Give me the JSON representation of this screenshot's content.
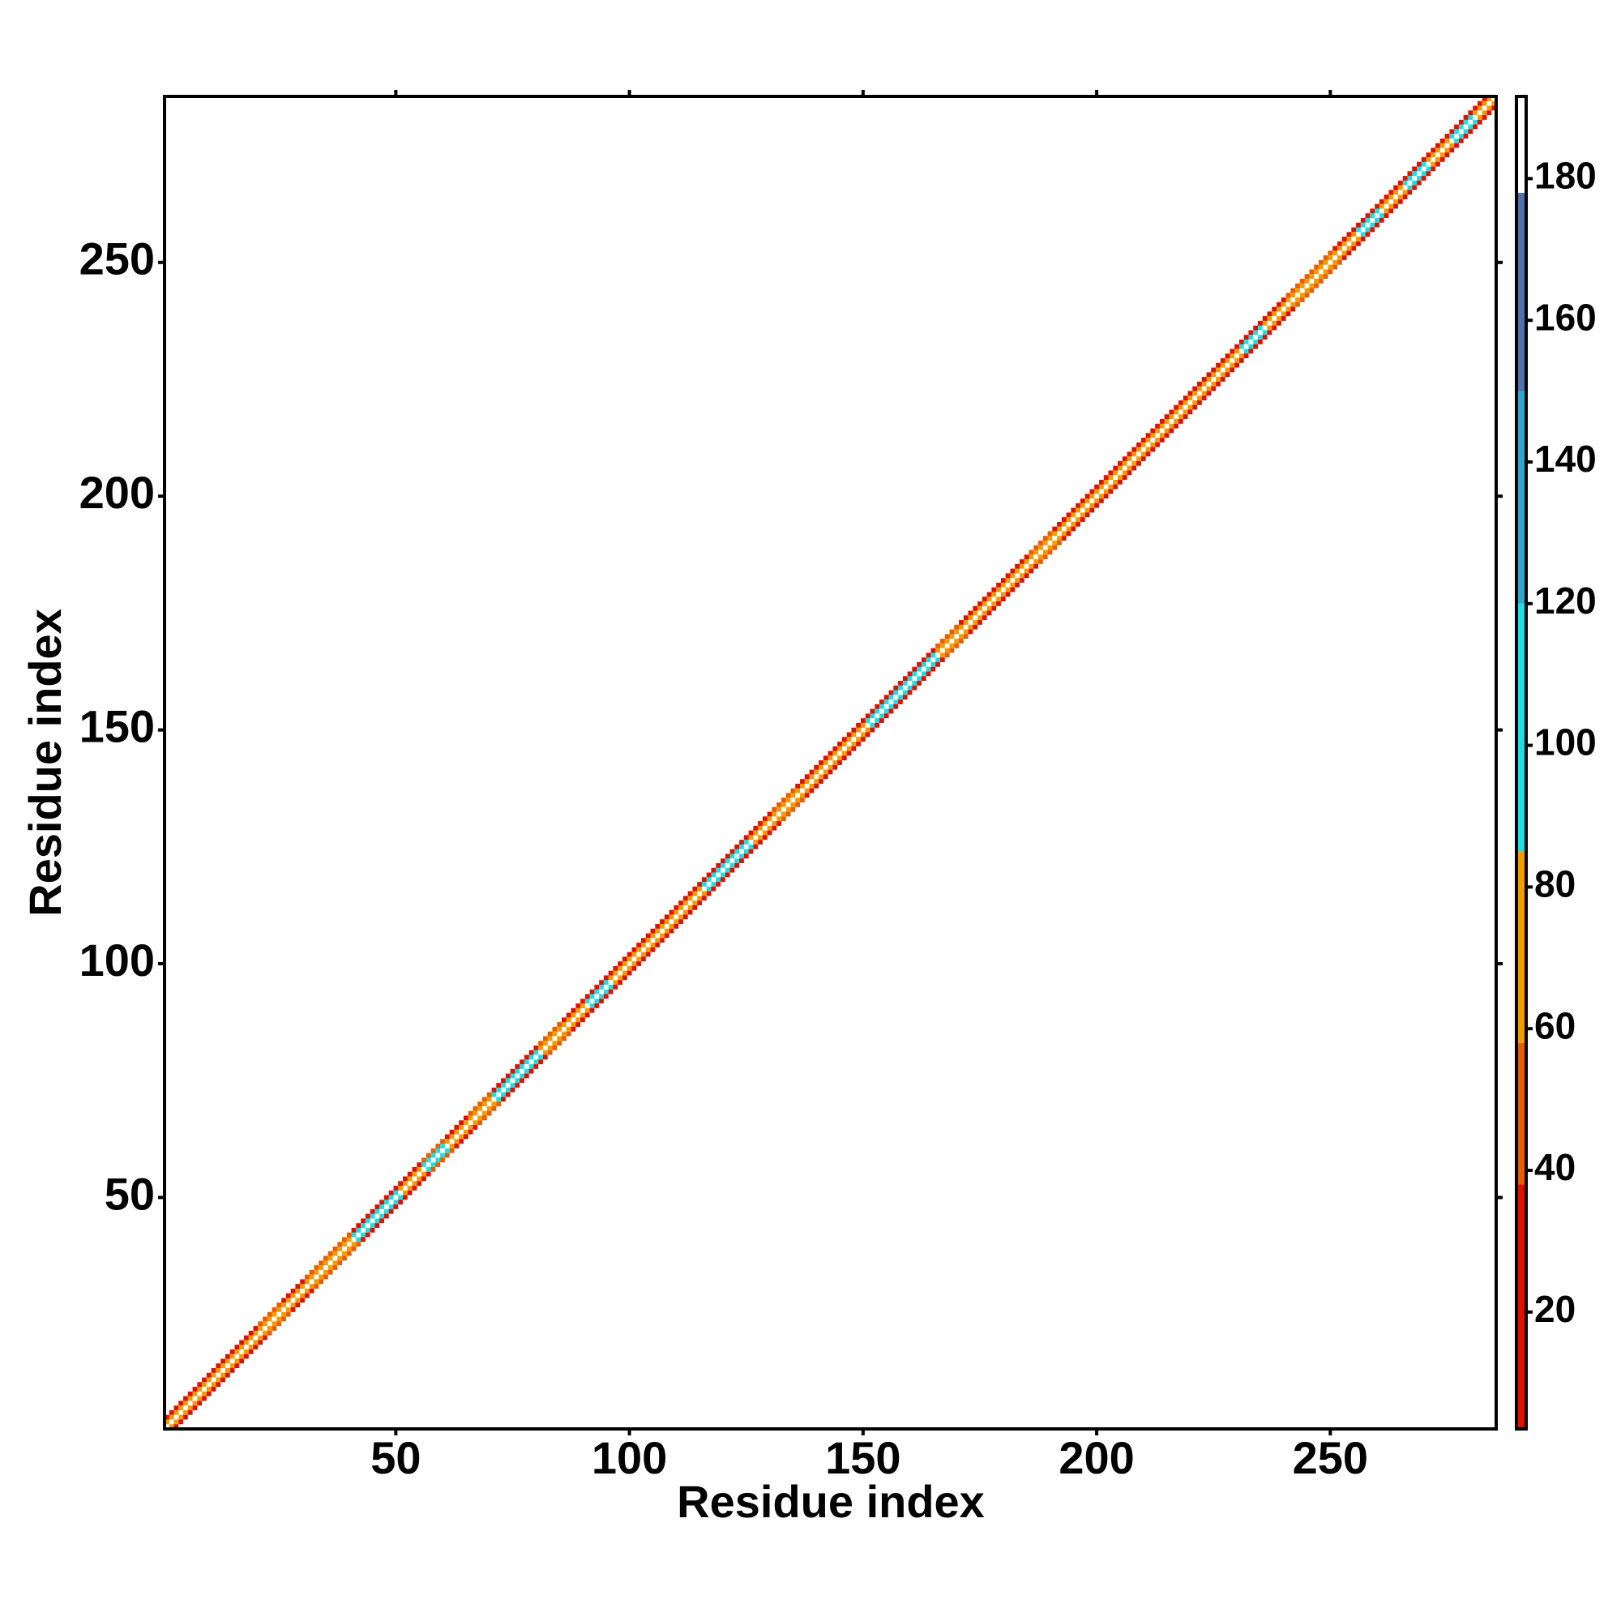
{
  "chart_data": {
    "type": "heatmap",
    "x_label": "Residue index",
    "y_label": "Residue index",
    "xlim": [
      0.5,
      285.5
    ],
    "ylim": [
      0.5,
      285.5
    ],
    "xticks": [
      50,
      100,
      150,
      200,
      250
    ],
    "yticks": [
      50,
      100,
      150,
      200,
      250
    ],
    "block_starts": [
      1,
      6,
      11,
      16,
      21,
      26,
      31,
      36,
      41,
      46,
      51,
      56,
      61,
      66,
      71,
      76,
      81,
      86,
      91,
      96,
      101,
      106,
      111,
      116,
      121,
      126,
      131,
      136,
      141,
      146,
      151,
      156,
      161,
      166,
      171,
      176,
      181,
      186,
      191,
      196,
      201,
      206,
      211,
      216,
      221,
      226,
      231,
      236,
      241,
      246,
      251,
      256,
      261,
      266,
      271,
      276,
      281
    ],
    "z": [
      [
        70,
        65,
        60,
        70,
        65,
        75,
        70,
        80,
        95,
        90,
        70,
        100,
        70,
        75,
        100,
        95,
        75,
        70,
        100,
        70,
        65,
        70,
        75,
        105,
        100,
        70,
        75,
        70,
        65,
        70,
        100,
        95,
        100,
        70,
        65,
        60,
        70,
        75,
        70,
        65,
        60,
        65,
        70,
        65,
        70,
        75,
        100,
        70,
        75,
        70,
        65,
        100,
        70,
        100,
        75,
        105,
        70
      ],
      [
        25,
        25,
        25,
        25,
        50,
        25,
        50,
        50,
        25,
        25,
        25,
        50,
        25,
        50,
        25,
        25,
        50,
        25,
        25,
        25,
        25,
        25,
        25,
        25,
        25,
        25,
        50,
        25,
        25,
        25,
        25,
        25,
        25,
        50,
        25,
        25,
        25,
        50,
        25,
        25,
        25,
        25,
        25,
        25,
        25,
        25,
        25,
        25,
        50,
        50,
        25,
        25,
        25,
        25,
        25,
        25,
        25
      ]
    ],
    "colorbar": {
      "lim": [
        3.5,
        191.6
      ],
      "ticks": [
        20,
        40,
        60,
        80,
        100,
        120,
        140,
        160,
        180
      ],
      "levels": [
        3.5,
        38,
        58,
        85,
        120,
        150,
        178,
        191.6
      ],
      "colors": [
        "#dd1100",
        "#e85d00",
        "#f39c00",
        "#22dde0",
        "#2fa9c9",
        "#4f72a8",
        "#ffffff"
      ]
    }
  }
}
